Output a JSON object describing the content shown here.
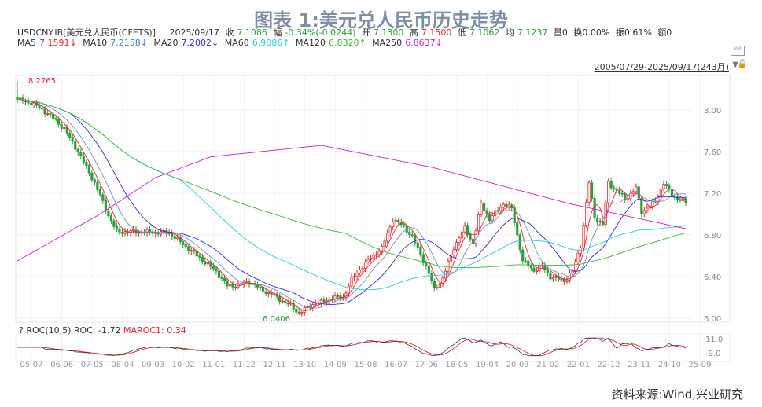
{
  "title": "图表 1:美元兑人民币历史走势",
  "header": {
    "symbol": "USDCNY.IB[美元兑人民币(CFETS)]",
    "date": "2025/09/17",
    "close_label": "收",
    "close": "7.1086",
    "chg_label": "幅",
    "chg": "-0.34%(-0.0244)",
    "open_label": "开",
    "open": "7.1300",
    "high_label": "高",
    "high": "7.1500",
    "low_label": "低",
    "low": "7.1062",
    "avg_label": "均",
    "avg": "7.1237",
    "vol": "量0",
    "turn": "换0.00%",
    "amp": "振0.61%",
    "amt": "额0"
  },
  "ma": {
    "ma5": "MA5",
    "ma5v": "7.1591↓",
    "ma10": "MA10",
    "ma10v": "7.2158↓",
    "ma20": "MA20",
    "ma20v": "7.2002↓",
    "ma60": "MA60",
    "ma60v": "6.9086↑",
    "ma120": "MA120",
    "ma120v": "6.8320↑",
    "ma250": "MA250",
    "ma250v": "6.8637↓"
  },
  "range": "2005/07/29-2025/09/17(243月)",
  "roc": {
    "label": "? ROC(10,5) ROC: -1.72",
    "maroc": "MAROC1: 0.34"
  },
  "source": "资料来源:Wind,兴业研究",
  "colors": {
    "up": "#e8262f",
    "down": "#2e9e3a",
    "ma5": "#e8262f",
    "ma10": "#6f8fbf",
    "ma20": "#2a2af0",
    "ma60": "#2fc9e0",
    "ma120": "#3cb83c",
    "ma250": "#d21ed2"
  },
  "chart_data": {
    "type": "candlestick",
    "months": 243,
    "ylim": [
      5.95,
      8.3
    ],
    "yticks": [
      "6.00",
      "6.40",
      "6.80",
      "7.20",
      "7.60",
      "8.00"
    ],
    "xticks": [
      "05-07",
      "06-06",
      "07-05",
      "08-04",
      "09-03",
      "10-02",
      "11-01",
      "11-12",
      "12-11",
      "13-10",
      "14-09",
      "15-08",
      "16-07",
      "17-06",
      "18-05",
      "19-04",
      "20-03",
      "21-02",
      "22-01",
      "22-12",
      "23-11",
      "24-10",
      "25-09"
    ],
    "annotations": {
      "max": "8.2765",
      "min": "6.0406"
    },
    "close_anchors": [
      [
        0,
        8.1
      ],
      [
        5,
        8.07
      ],
      [
        11,
        7.97
      ],
      [
        17,
        7.82
      ],
      [
        22,
        7.6
      ],
      [
        28,
        7.3
      ],
      [
        33,
        6.99
      ],
      [
        36,
        6.83
      ],
      [
        44,
        6.83
      ],
      [
        55,
        6.82
      ],
      [
        60,
        6.71
      ],
      [
        66,
        6.58
      ],
      [
        72,
        6.45
      ],
      [
        76,
        6.31
      ],
      [
        80,
        6.32
      ],
      [
        84,
        6.35
      ],
      [
        88,
        6.28
      ],
      [
        94,
        6.2
      ],
      [
        99,
        6.12
      ],
      [
        102,
        6.05
      ],
      [
        108,
        6.15
      ],
      [
        110,
        6.15
      ],
      [
        114,
        6.2
      ],
      [
        118,
        6.2
      ],
      [
        121,
        6.37
      ],
      [
        125,
        6.5
      ],
      [
        130,
        6.63
      ],
      [
        132,
        6.67
      ],
      [
        136,
        6.95
      ],
      [
        140,
        6.88
      ],
      [
        143,
        6.78
      ],
      [
        148,
        6.5
      ],
      [
        151,
        6.28
      ],
      [
        154,
        6.38
      ],
      [
        158,
        6.68
      ],
      [
        162,
        6.87
      ],
      [
        165,
        6.72
      ],
      [
        168,
        7.1
      ],
      [
        171,
        6.95
      ],
      [
        176,
        7.1
      ],
      [
        179,
        7.05
      ],
      [
        183,
        6.55
      ],
      [
        187,
        6.46
      ],
      [
        190,
        6.5
      ],
      [
        193,
        6.4
      ],
      [
        198,
        6.36
      ],
      [
        201,
        6.45
      ],
      [
        204,
        6.7
      ],
      [
        207,
        7.3
      ],
      [
        209,
        6.97
      ],
      [
        212,
        6.9
      ],
      [
        214,
        7.3
      ],
      [
        218,
        7.2
      ],
      [
        220,
        7.14
      ],
      [
        224,
        7.25
      ],
      [
        226,
        7.02
      ],
      [
        231,
        7.12
      ],
      [
        234,
        7.3
      ],
      [
        237,
        7.18
      ],
      [
        242,
        7.11
      ]
    ],
    "ma250_anchors": [
      [
        0,
        6.55
      ],
      [
        30,
        7.0
      ],
      [
        50,
        7.35
      ],
      [
        70,
        7.55
      ],
      [
        110,
        7.66
      ],
      [
        150,
        7.45
      ],
      [
        200,
        7.1
      ],
      [
        242,
        6.86
      ]
    ],
    "roc_yticks": [
      "11.0",
      "-9.0"
    ]
  }
}
